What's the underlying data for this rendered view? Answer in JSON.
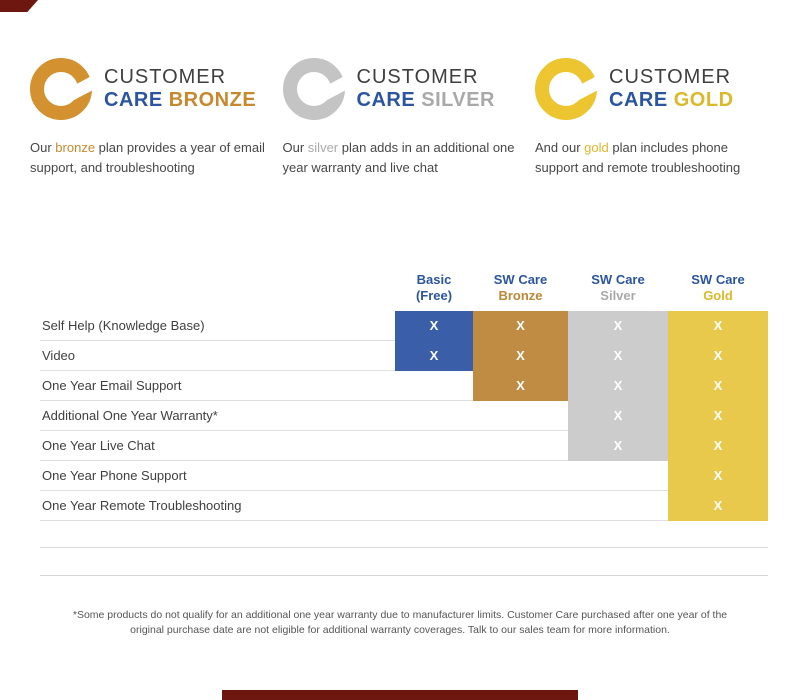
{
  "page": {
    "top_accent_color": "#6e1710",
    "bottom_bar_color": "#6e1710"
  },
  "plans": [
    {
      "logo_color": "#d3912f",
      "title_top": "CUSTOMER",
      "title_care": "CARE",
      "title_tier": "BRONZE",
      "tier_color": "#c8882e",
      "desc_prefix": "Our ",
      "desc_keyword": "bronze",
      "desc_suffix": " plan provides a year of email support, and troubleshooting"
    },
    {
      "logo_color": "#c4c4c4",
      "title_top": "CUSTOMER",
      "title_care": "CARE",
      "title_tier": "SILVER",
      "tier_color": "#a9a9a9",
      "desc_prefix": "Our ",
      "desc_keyword": "silver",
      "desc_suffix": " plan adds in an additional one year warranty and live chat"
    },
    {
      "logo_color": "#ecc530",
      "title_top": "CUSTOMER",
      "title_care": "CARE",
      "title_tier": "GOLD",
      "tier_color": "#ddb82a",
      "desc_prefix": "And our ",
      "desc_keyword": "gold",
      "desc_suffix": " plan includes phone support and remote troubleshooting"
    }
  ],
  "table": {
    "mark": "X",
    "columns": [
      {
        "id": "basic",
        "line1": "Basic",
        "line2": "(Free)",
        "line1_color": "#2b55a0",
        "line2_color": "#2b55a0",
        "cell_color": "#3a5fa8"
      },
      {
        "id": "bronze",
        "line1": "SW Care",
        "line2": "Bronze",
        "line1_color": "#2b55a0",
        "line2_color": "#bd8634",
        "cell_color": "#c08b42"
      },
      {
        "id": "silver",
        "line1": "SW Care",
        "line2": "Silver",
        "line1_color": "#2b55a0",
        "line2_color": "#a8a8a8",
        "cell_color": "#cccccc"
      },
      {
        "id": "gold",
        "line1": "SW Care",
        "line2": "Gold",
        "line1_color": "#2b55a0",
        "line2_color": "#dcb82a",
        "cell_color": "#e9c94b"
      }
    ],
    "rows": [
      {
        "label": "Self Help (Knowledge Base)",
        "cells": [
          1,
          1,
          1,
          1
        ]
      },
      {
        "label": "Video",
        "cells": [
          1,
          1,
          1,
          1
        ]
      },
      {
        "label": "One Year Email Support",
        "cells": [
          0,
          1,
          1,
          1
        ]
      },
      {
        "label": "Additional One Year Warranty*",
        "cells": [
          0,
          0,
          1,
          1
        ]
      },
      {
        "label": "One Year Live Chat",
        "cells": [
          0,
          0,
          1,
          1
        ]
      },
      {
        "label": "One Year Phone Support",
        "cells": [
          0,
          0,
          0,
          1
        ]
      },
      {
        "label": "One Year Remote Troubleshooting",
        "cells": [
          0,
          0,
          0,
          1
        ]
      }
    ]
  },
  "footnote": "*Some products do not qualify for an additional one year warranty due to manufacturer limits. Customer Care purchased after one year of the original purchase date are not eligible for additional warranty coverages. Talk to our sales team for more information."
}
